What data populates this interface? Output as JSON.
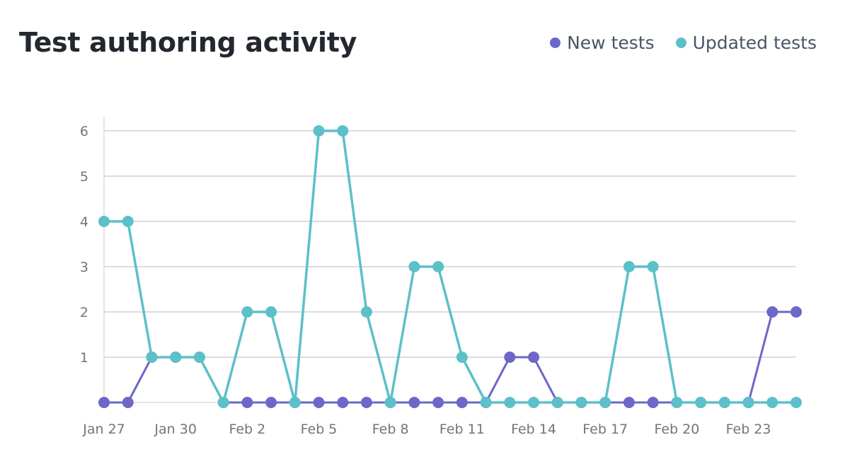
{
  "header": {
    "title": "Test authoring activity"
  },
  "legend": {
    "items": [
      {
        "label": "New tests",
        "color": "#6c67c9"
      },
      {
        "label": "Updated tests",
        "color": "#5cc0c9"
      }
    ]
  },
  "colors": {
    "grid": "#dcdcdc",
    "axis": "#e6e6e6",
    "tick_text": "#757575",
    "title_text": "#23272f"
  },
  "chart_data": {
    "type": "line",
    "title": "Test authoring activity",
    "xlabel": "",
    "ylabel": "",
    "ylim": [
      0,
      6
    ],
    "yticks": [
      1,
      2,
      3,
      4,
      5,
      6
    ],
    "grid": true,
    "legend_position": "top-right",
    "x": [
      "Jan 27",
      "Jan 28",
      "Jan 29",
      "Jan 30",
      "Jan 31",
      "Feb 1",
      "Feb 2",
      "Feb 3",
      "Feb 4",
      "Feb 5",
      "Feb 6",
      "Feb 7",
      "Feb 8",
      "Feb 9",
      "Feb 10",
      "Feb 11",
      "Feb 12",
      "Feb 13",
      "Feb 14",
      "Feb 15",
      "Feb 16",
      "Feb 17",
      "Feb 18",
      "Feb 19",
      "Feb 20",
      "Feb 21",
      "Feb 22",
      "Feb 23",
      "Feb 24",
      "Feb 25"
    ],
    "xtick_labels": [
      {
        "index": 0,
        "label": "Jan 27"
      },
      {
        "index": 3,
        "label": "Jan 30"
      },
      {
        "index": 6,
        "label": "Feb 2"
      },
      {
        "index": 9,
        "label": "Feb 5"
      },
      {
        "index": 12,
        "label": "Feb 8"
      },
      {
        "index": 15,
        "label": "Feb 11"
      },
      {
        "index": 18,
        "label": "Feb 14"
      },
      {
        "index": 21,
        "label": "Feb 17"
      },
      {
        "index": 24,
        "label": "Feb 20"
      },
      {
        "index": 27,
        "label": "Feb 23"
      }
    ],
    "series": [
      {
        "name": "New tests",
        "color": "#6c67c9",
        "values": [
          0,
          0,
          1,
          1,
          1,
          0,
          0,
          0,
          0,
          0,
          0,
          0,
          0,
          0,
          0,
          0,
          0,
          1,
          1,
          0,
          0,
          0,
          0,
          0,
          0,
          0,
          0,
          0,
          2,
          2
        ]
      },
      {
        "name": "Updated tests",
        "color": "#5cc0c9",
        "values": [
          4,
          4,
          1,
          1,
          1,
          0,
          2,
          2,
          0,
          6,
          6,
          2,
          0,
          3,
          3,
          1,
          0,
          0,
          0,
          0,
          0,
          0,
          3,
          3,
          0,
          0,
          0,
          0,
          0,
          0
        ]
      }
    ]
  }
}
